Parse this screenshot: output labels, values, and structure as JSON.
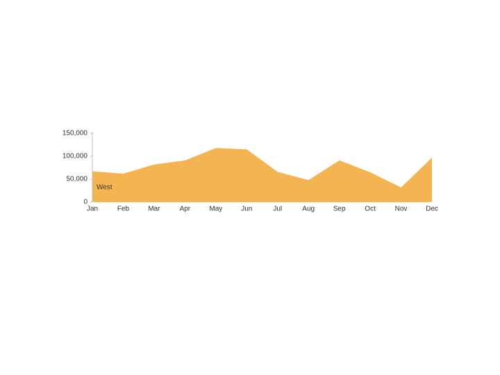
{
  "chart_data": {
    "type": "area",
    "categories": [
      "Jan",
      "Feb",
      "Mar",
      "Apr",
      "May",
      "Jun",
      "Jul",
      "Aug",
      "Sep",
      "Oct",
      "Nov",
      "Dec"
    ],
    "series": [
      {
        "name": "West",
        "color": "#f5b452",
        "values": [
          67000,
          62000,
          82000,
          91000,
          118000,
          115000,
          66000,
          48000,
          91000,
          65000,
          32000,
          97000
        ]
      }
    ],
    "ylim": [
      0,
      150000
    ],
    "yticks": [
      0,
      {
        "value": 50000,
        "label": "50,000"
      },
      {
        "value": 100000,
        "label": "100,000"
      },
      {
        "value": 150000,
        "label": "150,000"
      }
    ]
  }
}
